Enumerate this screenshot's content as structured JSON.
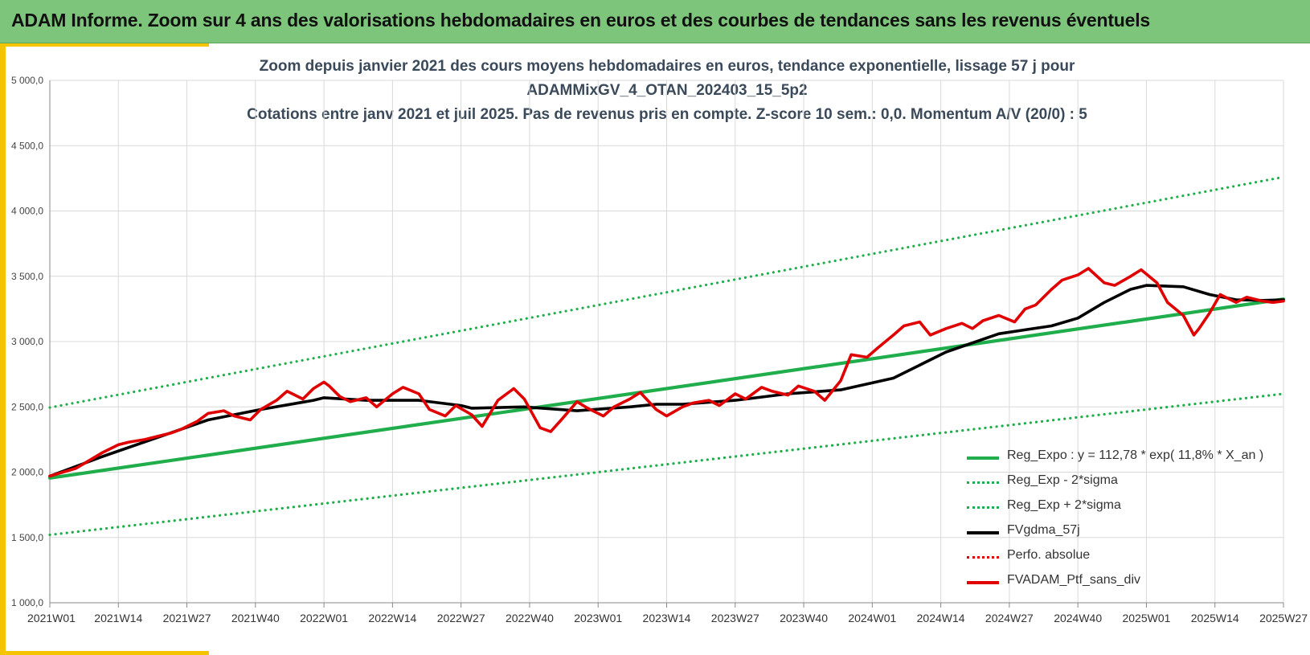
{
  "header": {
    "title": "ADAM Informe. Zoom sur 4 ans des valorisations hebdomadaires en euros et des courbes de tendances sans les revenus éventuels"
  },
  "colors": {
    "banner": "#7dc57a",
    "accent": "#f5c400",
    "reg_expo": "#1fae4b",
    "sigma": "#1fae4b",
    "moving_avg": "#000000",
    "perfo": "#e00000",
    "portfolio": "#e00000"
  },
  "chart_data": {
    "type": "line",
    "title_lines": [
      "Zoom depuis janvier 2021 des cours moyens hebdomadaires  en euros, tendance exponentielle, lissage 57 j pour",
      "ADAMMixGV_4_OTAN_202403_15_5p2",
      "Cotations entre janv 2021 et juil 2025. Pas de revenus pris en compte. Z-score 10 sem.: 0,0. Momentum A/V (20/0) : 5"
    ],
    "x_ticks": [
      "2021W01",
      "2021W14",
      "2021W27",
      "2021W40",
      "2022W01",
      "2022W14",
      "2022W27",
      "2022W40",
      "2023W01",
      "2023W14",
      "2023W27",
      "2023W40",
      "2024W01",
      "2024W14",
      "2024W27",
      "2024W40",
      "2025W01",
      "2025W14",
      "2025W27"
    ],
    "y_ticks": [
      "1 000,0",
      "1 500,0",
      "2 000,0",
      "2 500,0",
      "3 000,0",
      "3 500,0",
      "4 000,0",
      "4 500,0",
      "5 000,0"
    ],
    "ylim": [
      1000,
      5000
    ],
    "xlim_weeks": [
      0,
      234
    ],
    "grid": true,
    "legend_position": "bottom-right",
    "legend": [
      {
        "key": "reg_expo",
        "label": "Reg_Expo : y = 112,78 * exp( 11,8% *  X_an )",
        "style": "solid",
        "color": "#1fae4b"
      },
      {
        "key": "sigma_minus",
        "label": "Reg_Exp - 2*sigma",
        "style": "dotted",
        "color": "#1fae4b"
      },
      {
        "key": "sigma_plus",
        "label": "Reg_Exp + 2*sigma",
        "style": "dotted",
        "color": "#1fae4b"
      },
      {
        "key": "fvgdma",
        "label": "FVgdma_57j",
        "style": "solid",
        "color": "#000000"
      },
      {
        "key": "perfo",
        "label": "Perfo. absolue",
        "style": "dotted",
        "color": "#e00000"
      },
      {
        "key": "portfolio",
        "label": "FVADAM_Ptf_sans_div",
        "style": "solid",
        "color": "#e00000"
      }
    ],
    "series": [
      {
        "key": "reg_expo",
        "x": [
          0,
          234
        ],
        "y": [
          1955,
          3325
        ]
      },
      {
        "key": "sigma_minus",
        "x": [
          0,
          234
        ],
        "y": [
          1520,
          2600
        ]
      },
      {
        "key": "sigma_plus",
        "x": [
          0,
          234
        ],
        "y": [
          2495,
          4260
        ]
      },
      {
        "key": "fvgdma",
        "x": [
          0,
          10,
          20,
          30,
          40,
          50,
          52,
          60,
          70,
          78,
          80,
          90,
          100,
          110,
          115,
          120,
          130,
          140,
          150,
          160,
          170,
          180,
          190,
          195,
          200,
          205,
          208,
          215,
          220,
          225,
          230,
          234
        ],
        "y": [
          1970,
          2120,
          2260,
          2400,
          2480,
          2550,
          2570,
          2550,
          2550,
          2510,
          2490,
          2500,
          2470,
          2500,
          2520,
          2520,
          2550,
          2600,
          2630,
          2720,
          2920,
          3060,
          3120,
          3180,
          3300,
          3400,
          3430,
          3420,
          3360,
          3320,
          3315,
          3320
        ]
      },
      {
        "key": "portfolio",
        "x": [
          0,
          5,
          10,
          13,
          15,
          18,
          20,
          23,
          25,
          28,
          30,
          33,
          35,
          38,
          40,
          43,
          45,
          48,
          50,
          52,
          53,
          55,
          57,
          60,
          62,
          65,
          67,
          70,
          72,
          75,
          77,
          80,
          82,
          85,
          88,
          90,
          93,
          95,
          97,
          100,
          102,
          105,
          107,
          110,
          112,
          115,
          117,
          120,
          122,
          125,
          127,
          130,
          132,
          135,
          137,
          140,
          142,
          145,
          147,
          150,
          152,
          155,
          157,
          160,
          162,
          165,
          167,
          170,
          173,
          175,
          177,
          180,
          183,
          185,
          187,
          190,
          192,
          195,
          197,
          200,
          202,
          205,
          207,
          210,
          212,
          215,
          217,
          218,
          220,
          222,
          225,
          227,
          230,
          232,
          234
        ],
        "y": [
          1970,
          2030,
          2150,
          2210,
          2230,
          2250,
          2270,
          2300,
          2330,
          2390,
          2450,
          2470,
          2430,
          2400,
          2480,
          2550,
          2620,
          2560,
          2640,
          2690,
          2660,
          2580,
          2540,
          2570,
          2500,
          2600,
          2650,
          2600,
          2480,
          2430,
          2510,
          2440,
          2350,
          2550,
          2640,
          2560,
          2340,
          2310,
          2400,
          2540,
          2490,
          2430,
          2500,
          2560,
          2610,
          2480,
          2430,
          2500,
          2530,
          2550,
          2510,
          2600,
          2560,
          2650,
          2620,
          2590,
          2660,
          2620,
          2550,
          2700,
          2900,
          2880,
          2950,
          3050,
          3120,
          3150,
          3050,
          3100,
          3140,
          3100,
          3160,
          3200,
          3150,
          3250,
          3280,
          3400,
          3470,
          3510,
          3560,
          3450,
          3430,
          3500,
          3550,
          3450,
          3300,
          3200,
          3050,
          3100,
          3220,
          3360,
          3300,
          3340,
          3310,
          3300,
          3310
        ]
      }
    ]
  }
}
